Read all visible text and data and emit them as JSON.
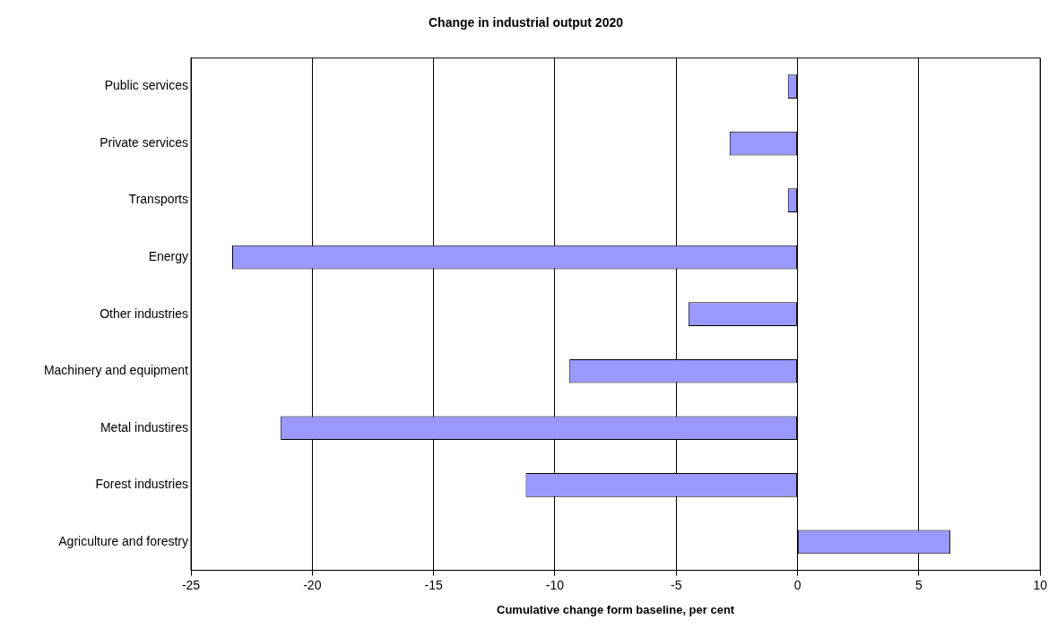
{
  "chart_data": {
    "type": "bar",
    "orientation": "horizontal",
    "title": "Change in industrial output 2020",
    "xlabel": "Cumulative change form baseline, per cent",
    "categories": [
      "Public services",
      "Private services",
      "Transports",
      "Energy",
      "Other industries",
      "Machinery and equipment",
      "Metal industires",
      "Forest industries",
      "Agriculture and forestry"
    ],
    "values": [
      -0.4,
      -2.8,
      -0.4,
      -23.3,
      -4.5,
      -9.4,
      -21.3,
      -11.2,
      6.3
    ],
    "color": "#9999ff",
    "xlim": [
      -25,
      10
    ],
    "xticks": [
      -25,
      -20,
      -15,
      -10,
      -5,
      0,
      5,
      10
    ],
    "grid": "x",
    "legend": false
  }
}
